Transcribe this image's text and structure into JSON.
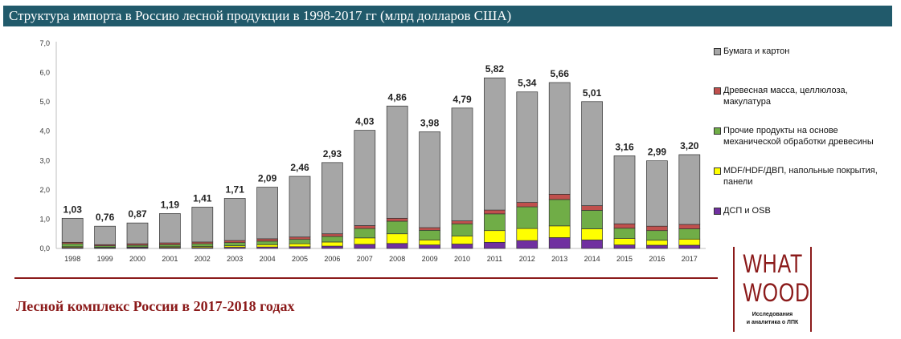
{
  "page": {
    "title": "Структура импорта в Россию лесной продукции в 1998-2017 гг (млрд долларов США)",
    "footer": "Лесной комплекс России в 2017-2018 годах"
  },
  "logo": {
    "line1": "WHAT",
    "line2": "WOOD",
    "caption_line1": "Исследования",
    "caption_line2": "и аналитика о ЛПК"
  },
  "legend": {
    "items": [
      {
        "label": "Бумага и картон",
        "color": "#a6a6a6"
      },
      {
        "label": "Древесная масса, целлюлоза, макулатура",
        "color": "#c0504d"
      },
      {
        "label": "Прочие продукты на основе механической обработки древесины",
        "color": "#70ad47"
      },
      {
        "label": "MDF/HDF/ДВП, напольные покрытия, панели",
        "color": "#ffff00"
      },
      {
        "label": "ДСП и OSB",
        "color": "#7030a0"
      }
    ]
  },
  "chart_data": {
    "type": "bar",
    "stacked": true,
    "title": "Структура импорта в Россию лесной продукции в 1998-2017 гг (млрд долларов США)",
    "categories": [
      "1998",
      "1999",
      "2000",
      "2001",
      "2002",
      "2003",
      "2004",
      "2005",
      "2006",
      "2007",
      "2008",
      "2009",
      "2010",
      "2011",
      "2012",
      "2013",
      "2014",
      "2015",
      "2016",
      "2017"
    ],
    "ylim": [
      0,
      7
    ],
    "yticks": [
      "0,0",
      "1,0",
      "2,0",
      "3,0",
      "4,0",
      "5,0",
      "6,0",
      "7,0"
    ],
    "grid": false,
    "legend_position": "right",
    "totals": [
      "1,03",
      "0,76",
      "0,87",
      "1,19",
      "1,41",
      "1,71",
      "2,09",
      "2,46",
      "2,93",
      "4,03",
      "4,86",
      "3,98",
      "4,79",
      "5,82",
      "5,34",
      "5,66",
      "5,01",
      "3,16",
      "2,99",
      "3,20"
    ],
    "series": [
      {
        "name": "ДСП и OSB",
        "color": "#7030a0",
        "values": [
          0.03,
          0.02,
          0.03,
          0.03,
          0.03,
          0.04,
          0.05,
          0.06,
          0.08,
          0.14,
          0.17,
          0.12,
          0.15,
          0.21,
          0.27,
          0.37,
          0.29,
          0.12,
          0.11,
          0.11
        ]
      },
      {
        "name": "MDF/HDF/ДВП, напольные покрытия, панели",
        "color": "#ffff00",
        "values": [
          0.03,
          0.02,
          0.02,
          0.03,
          0.04,
          0.05,
          0.08,
          0.1,
          0.14,
          0.22,
          0.33,
          0.17,
          0.27,
          0.4,
          0.41,
          0.4,
          0.38,
          0.22,
          0.17,
          0.21
        ]
      },
      {
        "name": "Прочие продукты на основе механической обработки древесины",
        "color": "#70ad47",
        "values": [
          0.1,
          0.05,
          0.06,
          0.07,
          0.09,
          0.11,
          0.12,
          0.15,
          0.19,
          0.32,
          0.43,
          0.33,
          0.42,
          0.57,
          0.74,
          0.9,
          0.63,
          0.35,
          0.33,
          0.35
        ]
      },
      {
        "name": "Древесная масса, целлюлоза, макулатура",
        "color": "#c0504d",
        "values": [
          0.05,
          0.04,
          0.05,
          0.06,
          0.06,
          0.07,
          0.08,
          0.08,
          0.09,
          0.1,
          0.1,
          0.09,
          0.1,
          0.13,
          0.15,
          0.18,
          0.16,
          0.15,
          0.15,
          0.15
        ]
      },
      {
        "name": "Бумага и картон",
        "color": "#a6a6a6",
        "values": [
          0.82,
          0.63,
          0.71,
          1.0,
          1.19,
          1.44,
          1.76,
          2.07,
          2.43,
          3.25,
          3.83,
          3.27,
          3.85,
          4.51,
          3.77,
          3.81,
          3.55,
          2.32,
          2.23,
          2.38
        ]
      }
    ]
  }
}
